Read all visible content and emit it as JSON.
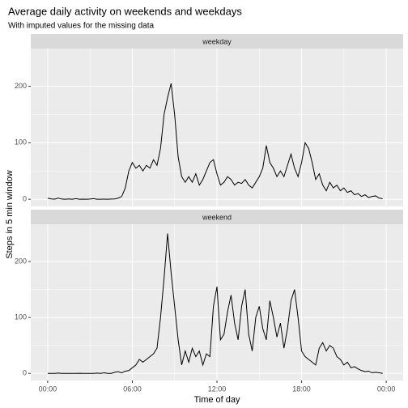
{
  "chart_data": {
    "type": "line",
    "title": "Average daily activity on weekends and weekdays",
    "subtitle": "With imputed values for the missing data",
    "x_label": "Time of day",
    "y_label": "Steps in 5 min window",
    "facets": true,
    "grid": true,
    "x": [
      0,
      0.25,
      0.5,
      0.75,
      1,
      1.25,
      1.5,
      1.75,
      2,
      2.25,
      2.5,
      2.75,
      3,
      3.25,
      3.5,
      3.75,
      4,
      4.25,
      4.5,
      4.75,
      5,
      5.25,
      5.5,
      5.75,
      6,
      6.25,
      6.5,
      6.75,
      7,
      7.25,
      7.5,
      7.75,
      8,
      8.25,
      8.5,
      8.75,
      9,
      9.25,
      9.5,
      9.75,
      10,
      10.25,
      10.5,
      10.75,
      11,
      11.25,
      11.5,
      11.75,
      12,
      12.25,
      12.5,
      12.75,
      13,
      13.25,
      13.5,
      13.75,
      14,
      14.25,
      14.5,
      14.75,
      15,
      15.25,
      15.5,
      15.75,
      16,
      16.25,
      16.5,
      16.75,
      17,
      17.25,
      17.5,
      17.75,
      18,
      18.25,
      18.5,
      18.75,
      19,
      19.25,
      19.5,
      19.75,
      20,
      20.25,
      20.5,
      20.75,
      21,
      21.25,
      21.5,
      21.75,
      22,
      22.25,
      22.5,
      22.75,
      23,
      23.25,
      23.5,
      23.75
    ],
    "xlim": [
      -1.2,
      25.2
    ],
    "xticks": [
      {
        "value": 0,
        "label": "00:00"
      },
      {
        "value": 6,
        "label": "06:00"
      },
      {
        "value": 12,
        "label": "12:00"
      },
      {
        "value": 18,
        "label": "18:00"
      },
      {
        "value": 24,
        "label": "00:00"
      }
    ],
    "ylim": [
      -12.7,
      266.7
    ],
    "yticks": [
      0,
      100,
      200
    ],
    "series": [
      {
        "name": "weekday",
        "color": "#000000",
        "values": [
          2,
          0.5,
          0.2,
          2,
          0.3,
          0.1,
          0.5,
          0.1,
          1,
          0,
          0.2,
          0,
          0.3,
          1,
          0,
          0.1,
          0.2,
          0,
          0.3,
          0.5,
          2,
          5,
          20,
          50,
          65,
          55,
          60,
          50,
          60,
          55,
          70,
          60,
          90,
          150,
          180,
          205,
          150,
          75,
          40,
          30,
          40,
          30,
          45,
          25,
          35,
          50,
          65,
          70,
          45,
          25,
          30,
          40,
          35,
          25,
          30,
          28,
          35,
          25,
          20,
          30,
          40,
          55,
          95,
          65,
          55,
          40,
          50,
          40,
          60,
          80,
          55,
          40,
          65,
          100,
          90,
          65,
          35,
          45,
          25,
          15,
          30,
          20,
          25,
          15,
          20,
          12,
          15,
          8,
          10,
          5,
          8,
          3,
          5,
          6,
          2,
          1
        ]
      },
      {
        "name": "weekend",
        "color": "#000000",
        "values": [
          0,
          0,
          0,
          0.5,
          0,
          0,
          0,
          0,
          0,
          0.2,
          0,
          0,
          0,
          0,
          0.5,
          0,
          1,
          0,
          0,
          2,
          3,
          1,
          4,
          5,
          10,
          15,
          25,
          20,
          25,
          30,
          35,
          45,
          100,
          170,
          250,
          180,
          120,
          60,
          15,
          40,
          20,
          45,
          30,
          40,
          15,
          35,
          30,
          120,
          155,
          60,
          70,
          110,
          140,
          90,
          60,
          120,
          150,
          70,
          40,
          100,
          120,
          80,
          60,
          130,
          100,
          65,
          90,
          45,
          80,
          130,
          150,
          100,
          40,
          30,
          25,
          20,
          15,
          45,
          55,
          40,
          50,
          45,
          30,
          25,
          15,
          20,
          10,
          12,
          8,
          5,
          3,
          4,
          1,
          2,
          1,
          0
        ]
      }
    ]
  }
}
